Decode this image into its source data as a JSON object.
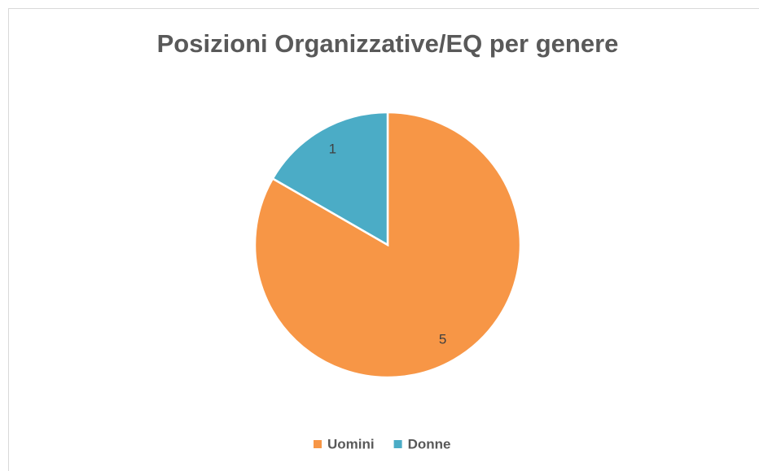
{
  "chart_data": {
    "type": "pie",
    "title": "Posizioni Organizzative/EQ per genere",
    "categories": [
      "Uomini",
      "Donne"
    ],
    "values": [
      5,
      1
    ],
    "colors": [
      "#f79646",
      "#4bacc6"
    ],
    "legend": "bottom"
  }
}
